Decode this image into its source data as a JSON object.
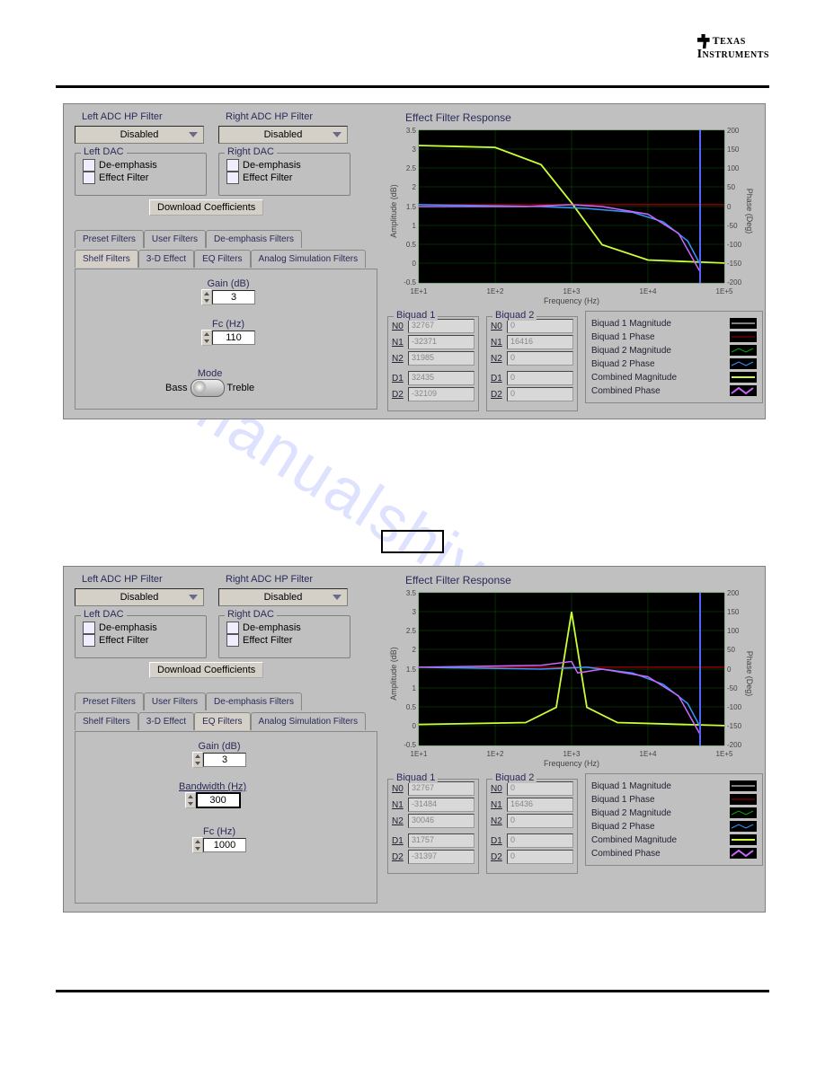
{
  "logo": {
    "line1_a": "T",
    "line1_b": "EXAS",
    "line2_a": "I",
    "line2_b": "NSTRUMENTS"
  },
  "labels": {
    "left_adc": "Left ADC HP Filter",
    "right_adc": "Right ADC HP Filter",
    "disabled": "Disabled",
    "left_dac": "Left DAC",
    "right_dac": "Right DAC",
    "deemph": "De-emphasis",
    "eff": "Effect Filter",
    "download": "Download Coefficients",
    "preset": "Preset Filters",
    "user": "User Filters",
    "deemphtab": "De-emphasis Filters",
    "shelf": "Shelf Filters",
    "threed": "3-D Effect",
    "eq": "EQ Filters",
    "analog": "Analog Simulation Filters",
    "gain": "Gain (dB)",
    "fc": "Fc (Hz)",
    "bw": "Bandwidth (Hz)",
    "mode": "Mode",
    "bass": "Bass",
    "treble": "Treble",
    "efr": "Effect Filter Response",
    "amp": "Amplitude (dB)",
    "phase": "Phase (Deg)",
    "freq": "Frequency (Hz)",
    "bq1": "Biquad 1",
    "bq2": "Biquad 2",
    "n0": "N0",
    "n1": "N1",
    "n2": "N2",
    "d1": "D1",
    "d2": "D2",
    "l1": "Biquad 1 Magnitude",
    "l2": "Biquad 1 Phase",
    "l3": "Biquad 2 Magnitude",
    "l4": "Biquad 2 Phase",
    "l5": "Combined Magnitude",
    "l6": "Combined Phase"
  },
  "chart": {
    "colors": {
      "bg": "#000000",
      "grid": "#0a5a0a",
      "axis": "#ffffff",
      "bq1mag": "#ffffff",
      "bq1ph": "#aa0000",
      "bq2mag": "#00aa00",
      "bq2ph": "#3399ff",
      "combmag": "#ccff33",
      "combph": "#cc66ff"
    },
    "ylim_amp": [
      -0.5,
      3.5
    ],
    "ytick_amp": [
      -0.5,
      0,
      0.5,
      1,
      1.5,
      2,
      2.5,
      3,
      3.5
    ],
    "ylim_ph": [
      -200,
      200
    ],
    "ytick_ph": [
      -200,
      -150,
      -100,
      -50,
      0,
      50,
      100,
      150,
      200
    ],
    "xticks": [
      "1E+1",
      "1E+2",
      "1E+3",
      "1E+4",
      "1E+5"
    ]
  },
  "panel1": {
    "gain": "3",
    "fc": "110",
    "bq1": {
      "n0": "32767",
      "n1": "-32371",
      "n2": "31985",
      "d1": "32435",
      "d2": "-32109"
    },
    "bq2": {
      "n0": "0",
      "n1": "16416",
      "n2": "0",
      "d1": "0",
      "d2": "0"
    },
    "curves": {
      "combmag": [
        [
          0,
          3.1
        ],
        [
          0.25,
          3.05
        ],
        [
          0.4,
          2.6
        ],
        [
          0.5,
          1.6
        ],
        [
          0.6,
          0.5
        ],
        [
          0.75,
          0.1
        ],
        [
          1,
          0.02
        ]
      ],
      "bq2ph": [
        [
          0,
          1.55
        ],
        [
          0.4,
          1.5
        ],
        [
          0.55,
          1.45
        ],
        [
          0.7,
          1.35
        ],
        [
          0.8,
          1.1
        ],
        [
          0.88,
          0.6
        ],
        [
          0.92,
          0
        ],
        [
          0.92,
          3.4
        ],
        [
          0.92,
          -0.4
        ]
      ],
      "bq1ph": [
        [
          0,
          1.55
        ],
        [
          1,
          1.55
        ]
      ],
      "combph": [
        [
          0,
          1.5
        ],
        [
          0.35,
          1.5
        ],
        [
          0.5,
          1.55
        ],
        [
          0.6,
          1.5
        ],
        [
          0.75,
          1.3
        ],
        [
          0.85,
          0.8
        ],
        [
          0.92,
          -0.2
        ]
      ]
    }
  },
  "panel2": {
    "gain": "3",
    "bw": "300",
    "fc": "1000",
    "bq1": {
      "n0": "32767",
      "n1": "-31484",
      "n2": "30046",
      "d1": "31757",
      "d2": "-31397"
    },
    "bq2": {
      "n0": "0",
      "n1": "16436",
      "n2": "0",
      "d1": "0",
      "d2": "0"
    },
    "curves": {
      "combmag": [
        [
          0,
          0.05
        ],
        [
          0.35,
          0.1
        ],
        [
          0.45,
          0.5
        ],
        [
          0.5,
          3.0
        ],
        [
          0.55,
          0.5
        ],
        [
          0.65,
          0.1
        ],
        [
          1,
          0.02
        ]
      ],
      "bq2ph": [
        [
          0,
          1.55
        ],
        [
          0.4,
          1.5
        ],
        [
          0.55,
          1.55
        ],
        [
          0.7,
          1.4
        ],
        [
          0.8,
          1.1
        ],
        [
          0.88,
          0.6
        ],
        [
          0.92,
          0
        ],
        [
          0.92,
          3.4
        ],
        [
          0.92,
          -0.4
        ]
      ],
      "bq1ph": [
        [
          0,
          1.55
        ],
        [
          1,
          1.55
        ]
      ],
      "combph": [
        [
          0,
          1.55
        ],
        [
          0.4,
          1.6
        ],
        [
          0.5,
          1.7
        ],
        [
          0.52,
          1.4
        ],
        [
          0.6,
          1.5
        ],
        [
          0.75,
          1.3
        ],
        [
          0.85,
          0.8
        ],
        [
          0.92,
          -0.2
        ]
      ]
    }
  },
  "watermark": "manualshive.com"
}
